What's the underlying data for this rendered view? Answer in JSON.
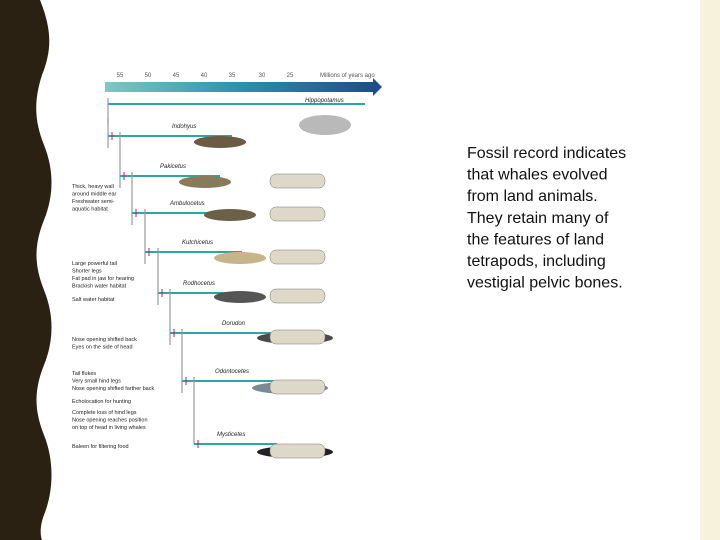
{
  "figure": {
    "time_axis": {
      "ticks": [
        "55",
        "50",
        "45",
        "40",
        "35",
        "30",
        "25"
      ],
      "unit": "Millions of years ago"
    },
    "taxa": [
      "Hippopotamus",
      "Indohyus",
      "Pakicetus",
      "Ambulocetus",
      "Kutchicetus",
      "Rodhocetus",
      "Dorudon",
      "Odontocetes",
      "Mysticetes"
    ],
    "traits": [
      [
        "Thick, heavy wall",
        "around middle ear",
        "Freshwater semi-",
        "aquatic habitat"
      ],
      [
        "Large powerful tail",
        "Shorter legs",
        "Fat pad in jaw for hearing",
        "Brackish water habitat"
      ],
      [
        "Salt water habitat"
      ],
      [
        "Nose opening shifted back",
        "Eyes on the side of head"
      ],
      [
        "Tail flukes",
        "Very small hind legs",
        "Nose opening shifted farther back"
      ],
      [
        "Echolocation for hunting"
      ],
      [
        "Complete loss of hind legs",
        "Nose opening reaches position",
        "on top of head in living whales"
      ],
      [
        "Baleen for filtering food"
      ]
    ]
  },
  "text": {
    "lines": [
      "Fossil record indicates",
      "that whales evolved",
      "from land animals.",
      "They retain many of",
      "the features of land",
      "tetrapods, including",
      "vestigial pelvic bones."
    ]
  }
}
